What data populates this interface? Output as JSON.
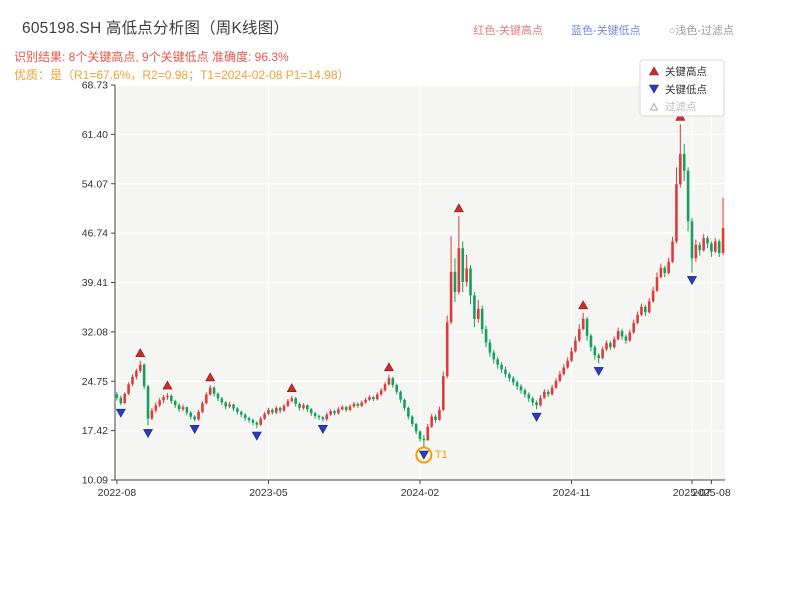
{
  "header": {
    "title": "605198.SH 高低点分析图（周K线图）",
    "top_legend": [
      {
        "label": "红色-关键高点",
        "color": "#e87a7a"
      },
      {
        "label": "蓝色-关键低点",
        "color": "#7b86e8"
      },
      {
        "label": "○浅色-过滤点",
        "color": "#9a9a9a"
      }
    ],
    "result_line": "识别结果: 8个关键高点, 9个关键低点  准确度: 96.3%",
    "result_color": "#e8564a",
    "quality_line": "优质：是（R1=67.6%，R2=0.98；T1=2024-02-08 P1=14.98）",
    "quality_color": "#f0a030"
  },
  "chart_data": {
    "type": "candlestick",
    "title": "605198.SH 高低点分析图（周K线图）",
    "ylim": [
      10.09,
      68.73
    ],
    "yticks": [
      10.09,
      17.42,
      24.75,
      32.08,
      39.41,
      46.74,
      54.07,
      61.4,
      68.73
    ],
    "xticks": [
      {
        "label": "2022-08",
        "index": 0
      },
      {
        "label": "2023-05",
        "index": 39
      },
      {
        "label": "2024-02",
        "index": 78
      },
      {
        "label": "2024-11",
        "index": 117
      },
      {
        "label": "2025-07",
        "index": 148
      },
      {
        "label": "2025-08",
        "index": 153
      }
    ],
    "legend": {
      "high": "关键高点",
      "low": "关键低点",
      "filtered": "过滤点"
    },
    "colors": {
      "up": "#df3b3b",
      "down": "#17a05d",
      "key_high": "#cf2b2b",
      "key_high_edge": "#7a1a1a",
      "key_low": "#2b3bbf",
      "key_low_edge": "#17217a",
      "t1": "#f59f00",
      "grid_bg": "#f5f5f3",
      "grid_line": "#ffffff",
      "spine": "#444444",
      "tick_text": "#333333"
    },
    "candles": [
      [
        22.8,
        23.2,
        21.9,
        22.3
      ],
      [
        22.3,
        22.6,
        21.2,
        21.5
      ],
      [
        21.5,
        23.1,
        21.4,
        22.9
      ],
      [
        22.9,
        24.6,
        22.7,
        24.3
      ],
      [
        24.3,
        25.8,
        24.0,
        25.4
      ],
      [
        25.4,
        26.6,
        25.0,
        26.3
      ],
      [
        26.3,
        27.8,
        26.0,
        27.2
      ],
      [
        27.2,
        27.4,
        23.6,
        24.0
      ],
      [
        24.0,
        24.2,
        18.2,
        19.2
      ],
      [
        19.2,
        20.8,
        19.0,
        20.4
      ],
      [
        20.4,
        21.6,
        20.1,
        21.2
      ],
      [
        21.2,
        22.3,
        20.9,
        21.9
      ],
      [
        21.9,
        22.7,
        21.5,
        22.4
      ],
      [
        22.4,
        23.0,
        22.0,
        22.6
      ],
      [
        22.6,
        22.8,
        21.4,
        21.8
      ],
      [
        21.8,
        22.0,
        20.8,
        21.2
      ],
      [
        21.2,
        21.5,
        20.2,
        20.6
      ],
      [
        20.6,
        21.3,
        20.3,
        20.9
      ],
      [
        20.9,
        21.0,
        19.7,
        20.1
      ],
      [
        20.1,
        20.3,
        19.1,
        19.5
      ],
      [
        19.5,
        19.7,
        18.8,
        19.1
      ],
      [
        19.1,
        20.5,
        18.9,
        20.2
      ],
      [
        20.2,
        21.8,
        20.0,
        21.5
      ],
      [
        21.5,
        23.1,
        21.3,
        22.8
      ],
      [
        22.8,
        24.2,
        22.6,
        23.8
      ],
      [
        23.8,
        24.0,
        22.5,
        22.9
      ],
      [
        22.9,
        23.1,
        21.8,
        22.2
      ],
      [
        22.2,
        22.4,
        21.2,
        21.6
      ],
      [
        21.6,
        21.8,
        20.6,
        21.0
      ],
      [
        21.0,
        21.7,
        20.8,
        21.3
      ],
      [
        21.3,
        21.4,
        20.3,
        20.7
      ],
      [
        20.7,
        20.9,
        19.8,
        20.2
      ],
      [
        20.2,
        20.4,
        19.4,
        19.8
      ],
      [
        19.8,
        20.0,
        18.9,
        19.3
      ],
      [
        19.3,
        19.5,
        18.6,
        19.0
      ],
      [
        19.0,
        19.2,
        18.2,
        18.6
      ],
      [
        18.6,
        18.8,
        17.8,
        18.3
      ],
      [
        18.3,
        19.5,
        18.1,
        19.2
      ],
      [
        19.2,
        20.2,
        19.0,
        19.9
      ],
      [
        19.9,
        20.8,
        19.7,
        20.5
      ],
      [
        20.5,
        20.7,
        19.8,
        20.1
      ],
      [
        20.1,
        21.1,
        19.9,
        20.8
      ],
      [
        20.8,
        21.0,
        20.0,
        20.4
      ],
      [
        20.4,
        21.4,
        20.2,
        21.1
      ],
      [
        21.1,
        22.1,
        20.9,
        21.8
      ],
      [
        21.8,
        22.6,
        21.6,
        22.2
      ],
      [
        22.2,
        22.4,
        21.0,
        21.4
      ],
      [
        21.4,
        21.6,
        20.4,
        20.8
      ],
      [
        20.8,
        21.5,
        20.5,
        21.2
      ],
      [
        21.2,
        21.3,
        20.2,
        20.6
      ],
      [
        20.6,
        20.8,
        19.6,
        20.0
      ],
      [
        20.0,
        20.2,
        19.2,
        19.6
      ],
      [
        19.6,
        19.8,
        19.0,
        19.4
      ],
      [
        19.4,
        19.6,
        18.8,
        19.1
      ],
      [
        19.1,
        20.1,
        18.9,
        19.8
      ],
      [
        19.8,
        20.6,
        19.6,
        20.3
      ],
      [
        20.3,
        20.5,
        19.7,
        20.0
      ],
      [
        20.0,
        20.9,
        19.8,
        20.6
      ],
      [
        20.6,
        21.2,
        20.4,
        20.9
      ],
      [
        20.9,
        21.1,
        20.2,
        20.5
      ],
      [
        20.5,
        21.3,
        20.3,
        21.0
      ],
      [
        21.0,
        21.7,
        20.8,
        21.4
      ],
      [
        21.4,
        21.6,
        20.8,
        21.1
      ],
      [
        21.1,
        21.9,
        20.9,
        21.6
      ],
      [
        21.6,
        22.3,
        21.4,
        22.0
      ],
      [
        22.0,
        22.7,
        21.8,
        22.4
      ],
      [
        22.4,
        22.6,
        21.8,
        22.1
      ],
      [
        22.1,
        23.1,
        21.9,
        22.8
      ],
      [
        22.8,
        23.7,
        22.6,
        23.4
      ],
      [
        23.4,
        24.6,
        23.2,
        24.3
      ],
      [
        24.3,
        25.7,
        24.1,
        25.2
      ],
      [
        25.2,
        25.4,
        23.8,
        24.2
      ],
      [
        24.2,
        24.4,
        22.8,
        23.2
      ],
      [
        23.2,
        23.4,
        21.6,
        22.0
      ],
      [
        22.0,
        22.2,
        20.4,
        20.8
      ],
      [
        20.8,
        21.0,
        19.1,
        19.5
      ],
      [
        19.5,
        19.7,
        18.0,
        18.4
      ],
      [
        18.4,
        18.6,
        16.9,
        17.3
      ],
      [
        17.3,
        17.5,
        15.8,
        16.2
      ],
      [
        16.2,
        16.8,
        14.98,
        16.0
      ],
      [
        16.0,
        18.4,
        15.9,
        18.0
      ],
      [
        18.0,
        19.9,
        17.8,
        19.5
      ],
      [
        19.5,
        19.8,
        18.6,
        19.0
      ],
      [
        19.0,
        21.0,
        18.9,
        20.5
      ],
      [
        20.5,
        26.2,
        20.3,
        25.5
      ],
      [
        25.5,
        34.5,
        25.2,
        33.5
      ],
      [
        33.5,
        46.3,
        33.2,
        41.0
      ],
      [
        41.0,
        43.0,
        36.5,
        38.0
      ],
      [
        38.0,
        49.3,
        37.6,
        44.5
      ],
      [
        44.5,
        45.5,
        38.0,
        39.5
      ],
      [
        39.5,
        43.5,
        38.8,
        41.5
      ],
      [
        41.5,
        42.0,
        36.2,
        37.5
      ],
      [
        37.5,
        38.0,
        32.8,
        34.0
      ],
      [
        34.0,
        36.8,
        33.4,
        35.5
      ],
      [
        35.5,
        36.0,
        31.8,
        32.5
      ],
      [
        32.5,
        33.0,
        29.8,
        30.5
      ],
      [
        30.5,
        31.0,
        28.4,
        29.0
      ],
      [
        29.0,
        29.4,
        27.4,
        28.0
      ],
      [
        28.0,
        28.4,
        26.6,
        27.2
      ],
      [
        27.2,
        27.6,
        26.0,
        26.5
      ],
      [
        26.5,
        26.9,
        25.3,
        25.8
      ],
      [
        25.8,
        26.1,
        24.7,
        25.2
      ],
      [
        25.2,
        25.5,
        24.1,
        24.6
      ],
      [
        24.6,
        24.9,
        23.5,
        24.0
      ],
      [
        24.0,
        24.3,
        22.9,
        23.4
      ],
      [
        23.4,
        23.7,
        22.3,
        22.8
      ],
      [
        22.8,
        23.1,
        21.7,
        22.2
      ],
      [
        22.2,
        22.5,
        21.1,
        21.6
      ],
      [
        21.6,
        21.9,
        20.6,
        21.2
      ],
      [
        21.2,
        22.7,
        21.0,
        22.3
      ],
      [
        22.3,
        23.6,
        22.1,
        23.2
      ],
      [
        23.2,
        23.5,
        22.4,
        22.8
      ],
      [
        22.8,
        24.2,
        22.6,
        23.8
      ],
      [
        23.8,
        25.2,
        23.6,
        24.8
      ],
      [
        24.8,
        26.3,
        24.6,
        25.8
      ],
      [
        25.8,
        27.3,
        25.6,
        26.8
      ],
      [
        26.8,
        28.3,
        26.6,
        27.8
      ],
      [
        27.8,
        29.8,
        27.6,
        29.2
      ],
      [
        29.2,
        31.4,
        29.0,
        30.8
      ],
      [
        30.8,
        33.2,
        30.6,
        32.5
      ],
      [
        32.5,
        34.9,
        32.3,
        34.0
      ],
      [
        34.0,
        34.3,
        30.8,
        31.5
      ],
      [
        31.5,
        31.8,
        29.2,
        29.8
      ],
      [
        29.8,
        30.1,
        28.0,
        28.6
      ],
      [
        28.6,
        28.9,
        27.4,
        28.2
      ],
      [
        28.2,
        29.9,
        28.0,
        29.5
      ],
      [
        29.5,
        30.8,
        29.2,
        30.4
      ],
      [
        30.4,
        30.7,
        29.4,
        29.8
      ],
      [
        29.8,
        31.4,
        29.6,
        31.0
      ],
      [
        31.0,
        32.7,
        30.8,
        32.2
      ],
      [
        32.2,
        32.5,
        30.9,
        31.4
      ],
      [
        31.4,
        31.7,
        30.3,
        30.8
      ],
      [
        30.8,
        32.4,
        30.6,
        32.0
      ],
      [
        32.0,
        33.9,
        31.8,
        33.4
      ],
      [
        33.4,
        35.1,
        33.2,
        34.6
      ],
      [
        34.6,
        36.3,
        34.4,
        35.8
      ],
      [
        35.8,
        36.1,
        34.4,
        35.0
      ],
      [
        35.0,
        37.1,
        34.8,
        36.6
      ],
      [
        36.6,
        38.8,
        36.4,
        38.2
      ],
      [
        38.2,
        40.9,
        38.0,
        40.2
      ],
      [
        40.2,
        42.2,
        40.0,
        41.6
      ],
      [
        41.6,
        41.9,
        40.2,
        40.8
      ],
      [
        40.8,
        43.1,
        40.6,
        42.5
      ],
      [
        42.5,
        46.2,
        42.3,
        45.5
      ],
      [
        45.5,
        56.5,
        45.2,
        54.0
      ],
      [
        54.0,
        62.9,
        53.5,
        58.5
      ],
      [
        58.5,
        60.0,
        54.5,
        56.0
      ],
      [
        56.0,
        56.5,
        47.0,
        48.5
      ],
      [
        48.5,
        49.0,
        40.9,
        43.0
      ],
      [
        43.0,
        45.8,
        42.5,
        45.0
      ],
      [
        45.0,
        45.4,
        43.4,
        44.2
      ],
      [
        44.2,
        46.6,
        44.0,
        46.0
      ],
      [
        46.0,
        46.3,
        44.5,
        45.2
      ],
      [
        45.2,
        45.5,
        43.2,
        44.0
      ],
      [
        44.0,
        46.0,
        43.8,
        45.5
      ],
      [
        45.5,
        45.8,
        43.2,
        43.8
      ],
      [
        43.8,
        52.0,
        43.5,
        47.5
      ]
    ],
    "key_high_indices": [
      6,
      13,
      24,
      45,
      70,
      88,
      120,
      145
    ],
    "key_low_indices": [
      1,
      8,
      20,
      36,
      53,
      79,
      108,
      124,
      148
    ],
    "filtered_indices": [],
    "t1_marker": {
      "index": 79,
      "label": "T1",
      "price": 14.98
    }
  }
}
